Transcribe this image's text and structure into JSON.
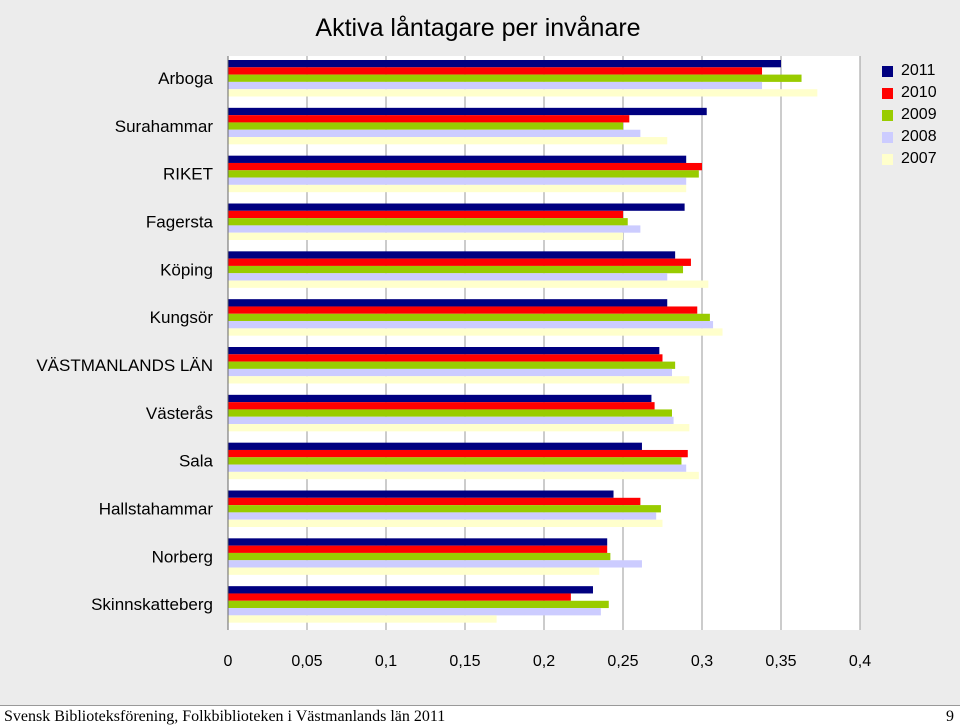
{
  "chart_data": {
    "type": "bar",
    "orientation": "horizontal",
    "title": "Aktiva låntagare per invånare",
    "categories": [
      "Arboga",
      "Surahammar",
      "RIKET",
      "Fagersta",
      "Köping",
      "Kungsör",
      "VÄSTMANLANDS LÄN",
      "Västerås",
      "Sala",
      "Hallstahammar",
      "Norberg",
      "Skinnskatteberg"
    ],
    "series": [
      {
        "name": "2011",
        "color": "#000080",
        "values": [
          0.35,
          0.303,
          0.29,
          0.289,
          0.283,
          0.278,
          0.273,
          0.268,
          0.262,
          0.244,
          0.24,
          0.231
        ]
      },
      {
        "name": "2010",
        "color": "#ff0000",
        "values": [
          0.338,
          0.254,
          0.3,
          0.25,
          0.293,
          0.297,
          0.275,
          0.27,
          0.291,
          0.261,
          0.24,
          0.217
        ]
      },
      {
        "name": "2009",
        "color": "#99cc00",
        "values": [
          0.363,
          0.25,
          0.298,
          0.253,
          0.288,
          0.305,
          0.283,
          0.281,
          0.287,
          0.274,
          0.242,
          0.241
        ]
      },
      {
        "name": "2008",
        "color": "#ccccff",
        "values": [
          0.338,
          0.261,
          0.29,
          0.261,
          0.278,
          0.307,
          0.281,
          0.282,
          0.29,
          0.271,
          0.262,
          0.236
        ]
      },
      {
        "name": "2007",
        "color": "#ffffcc",
        "values": [
          0.373,
          0.278,
          0.29,
          0.25,
          0.304,
          0.313,
          0.292,
          0.292,
          0.298,
          0.275,
          0.235,
          0.17
        ]
      }
    ],
    "xlim": [
      0,
      0.4
    ],
    "xticks": [
      "0",
      "0,05",
      "0,1",
      "0,15",
      "0,2",
      "0,25",
      "0,3",
      "0,35",
      "0,4"
    ],
    "grid": "vertical",
    "legend": "top-right"
  },
  "footer": {
    "text": "Svensk Biblioteksförening, Folkbiblioteken i Västmanlands län 2011",
    "page_number": "9"
  }
}
